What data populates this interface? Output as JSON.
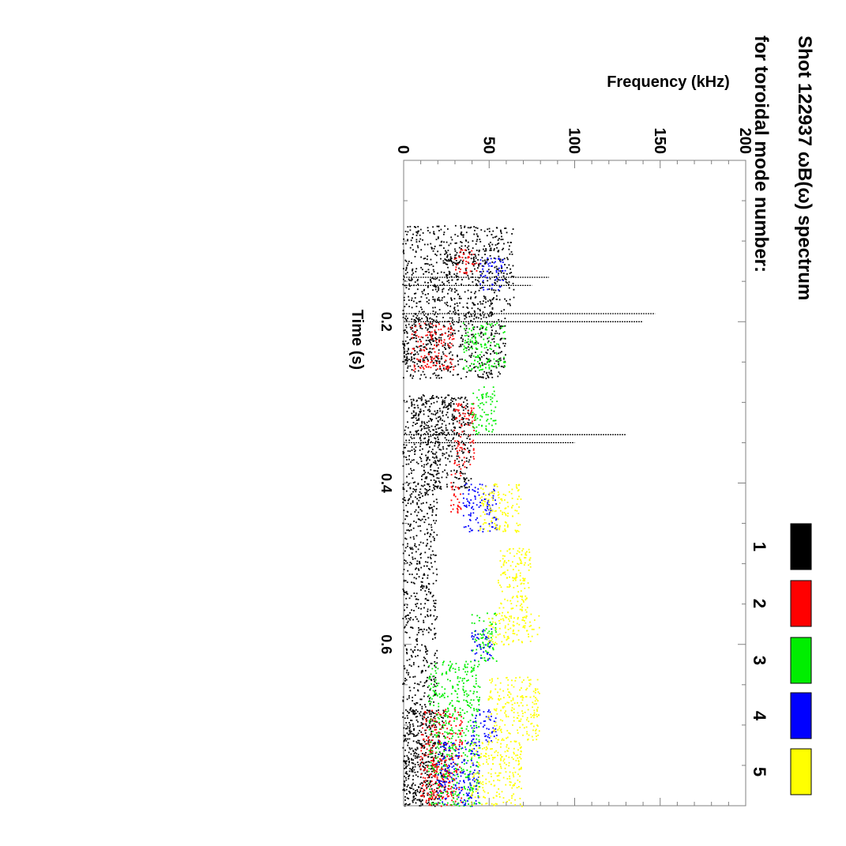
{
  "chart_data": {
    "type": "scatter",
    "orientation": "rotated-90-clockwise",
    "title": "Shot 122937 ωB(ω) spectrum",
    "subtitle": "for toroidal mode number:",
    "xlabel": "Time (s)",
    "ylabel": "Frequency (kHz)",
    "xlim": [
      0.0,
      0.8
    ],
    "ylim": [
      0,
      200
    ],
    "x_ticks": [
      "0.2",
      "0.4",
      "0.6"
    ],
    "y_ticks": [
      "0",
      "50",
      "100",
      "150",
      "200"
    ],
    "legend": [
      {
        "label": "1",
        "color": "#000000"
      },
      {
        "label": "2",
        "color": "#ff0000"
      },
      {
        "label": "3",
        "color": "#00ee00"
      },
      {
        "label": "4",
        "color": "#0000ff"
      },
      {
        "label": "5",
        "color": "#ffff00"
      }
    ],
    "series": [
      {
        "name": "1",
        "color": "#000000",
        "clusters": [
          {
            "t": [
              0.08,
              0.18
            ],
            "f": [
              0,
              65
            ]
          },
          {
            "t": [
              0.11,
              0.13
            ],
            "f": [
              25,
              50
            ]
          },
          {
            "t": [
              0.18,
              0.27
            ],
            "f": [
              0,
              60
            ]
          },
          {
            "t": [
              0.19,
              0.25
            ],
            "f": [
              0,
              20
            ]
          },
          {
            "t": [
              0.29,
              0.41
            ],
            "f": [
              0,
              40
            ]
          },
          {
            "t": [
              0.29,
              0.34
            ],
            "f": [
              5,
              30
            ]
          },
          {
            "t": [
              0.34,
              0.41
            ],
            "f": [
              12,
              22
            ]
          },
          {
            "t": [
              0.41,
              0.8
            ],
            "f": [
              0,
              20
            ]
          },
          {
            "t": [
              0.68,
              0.8
            ],
            "f": [
              0,
              25
            ]
          }
        ],
        "lines": [
          {
            "t": 0.19,
            "f": [
              0,
              147
            ]
          },
          {
            "t": 0.2,
            "f": [
              0,
              140
            ]
          },
          {
            "t": 0.34,
            "f": [
              0,
              130
            ]
          },
          {
            "t": 0.35,
            "f": [
              0,
              100
            ]
          },
          {
            "t": 0.145,
            "f": [
              0,
              85
            ]
          },
          {
            "t": 0.155,
            "f": [
              0,
              75
            ]
          }
        ]
      },
      {
        "name": "2",
        "color": "#ff0000",
        "clusters": [
          {
            "t": [
              0.11,
              0.14
            ],
            "f": [
              30,
              45
            ]
          },
          {
            "t": [
              0.2,
              0.26
            ],
            "f": [
              5,
              30
            ]
          },
          {
            "t": [
              0.3,
              0.38
            ],
            "f": [
              30,
              42
            ]
          },
          {
            "t": [
              0.38,
              0.44
            ],
            "f": [
              28,
              34
            ]
          },
          {
            "t": [
              0.68,
              0.8
            ],
            "f": [
              10,
              35
            ]
          },
          {
            "t": [
              0.74,
              0.8
            ],
            "f": [
              15,
              30
            ]
          }
        ]
      },
      {
        "name": "3",
        "color": "#00ee00",
        "clusters": [
          {
            "t": [
              0.2,
              0.26
            ],
            "f": [
              35,
              60
            ]
          },
          {
            "t": [
              0.28,
              0.34
            ],
            "f": [
              40,
              55
            ]
          },
          {
            "t": [
              0.56,
              0.62
            ],
            "f": [
              40,
              55
            ]
          },
          {
            "t": [
              0.62,
              0.8
            ],
            "f": [
              15,
              45
            ]
          }
        ]
      },
      {
        "name": "4",
        "color": "#0000ff",
        "clusters": [
          {
            "t": [
              0.12,
              0.16
            ],
            "f": [
              45,
              60
            ]
          },
          {
            "t": [
              0.4,
              0.46
            ],
            "f": [
              35,
              55
            ]
          },
          {
            "t": [
              0.58,
              0.62
            ],
            "f": [
              40,
              52
            ]
          },
          {
            "t": [
              0.68,
              0.72
            ],
            "f": [
              40,
              55
            ]
          },
          {
            "t": [
              0.72,
              0.8
            ],
            "f": [
              20,
              45
            ]
          }
        ]
      },
      {
        "name": "5",
        "color": "#ffff00",
        "clusters": [
          {
            "t": [
              0.4,
              0.46
            ],
            "f": [
              45,
              70
            ]
          },
          {
            "t": [
              0.48,
              0.56
            ],
            "f": [
              55,
              75
            ]
          },
          {
            "t": [
              0.56,
              0.6
            ],
            "f": [
              50,
              80
            ]
          },
          {
            "t": [
              0.64,
              0.72
            ],
            "f": [
              50,
              80
            ]
          },
          {
            "t": [
              0.72,
              0.8
            ],
            "f": [
              40,
              70
            ]
          }
        ]
      }
    ]
  }
}
